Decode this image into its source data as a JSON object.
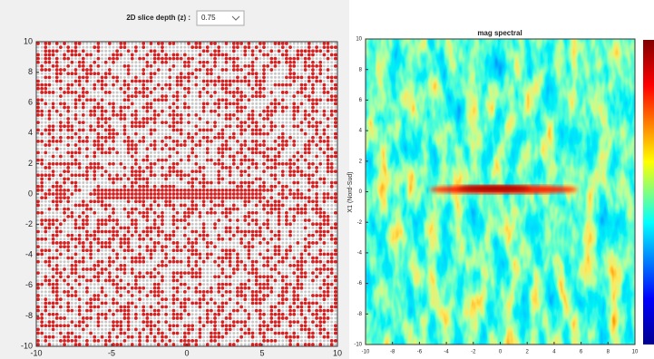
{
  "toolbar": {
    "label": "2D slice depth (z) :",
    "value": "0.75"
  },
  "chart_data": [
    {
      "type": "scatter",
      "xlim": [
        -10,
        10
      ],
      "ylim": [
        -10,
        10
      ],
      "xticks": [
        -10,
        -5,
        0,
        5,
        10
      ],
      "yticks": [
        -10,
        -8,
        -6,
        -4,
        -2,
        0,
        2,
        4,
        6,
        8,
        10
      ]
    },
    {
      "type": "heatmap",
      "title": "mag spectral",
      "ylabel": "X1 (Nord-Sud)",
      "xlim": [
        -10,
        10
      ],
      "ylim": [
        -10,
        10
      ],
      "xticks": [
        -10,
        -8,
        -6,
        -4,
        -2,
        0,
        2,
        4,
        6,
        8,
        10
      ],
      "yticks": [
        -10,
        -8,
        -6,
        -4,
        -2,
        0,
        2,
        4,
        6,
        8,
        10
      ]
    }
  ]
}
